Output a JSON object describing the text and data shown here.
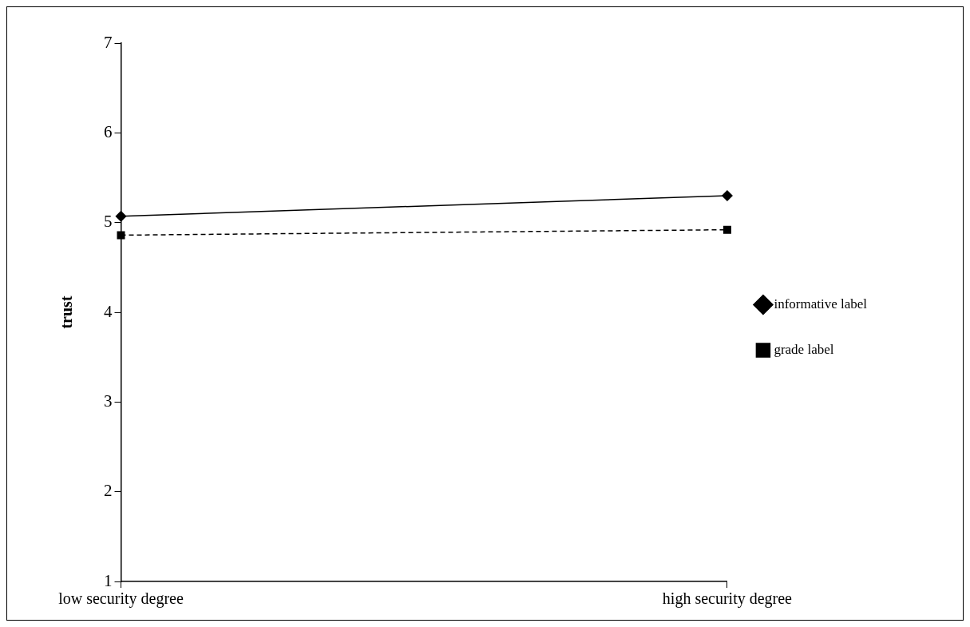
{
  "chart_data": {
    "type": "line",
    "ylabel": "trust",
    "categories": [
      "low security degree",
      "high security degree"
    ],
    "series": [
      {
        "name": "informative label",
        "color": "#000000",
        "values": [
          5.07,
          5.3
        ],
        "marker": "diamond",
        "line_style": "solid"
      },
      {
        "name": "grade label",
        "color": "#000000",
        "values": [
          4.86,
          4.92
        ],
        "marker": "square",
        "line_style": "dashed"
      }
    ],
    "ylim": [
      1,
      7
    ],
    "yticks": [
      1,
      2,
      3,
      4,
      5,
      6,
      7
    ],
    "grid": false,
    "legend": "right"
  }
}
